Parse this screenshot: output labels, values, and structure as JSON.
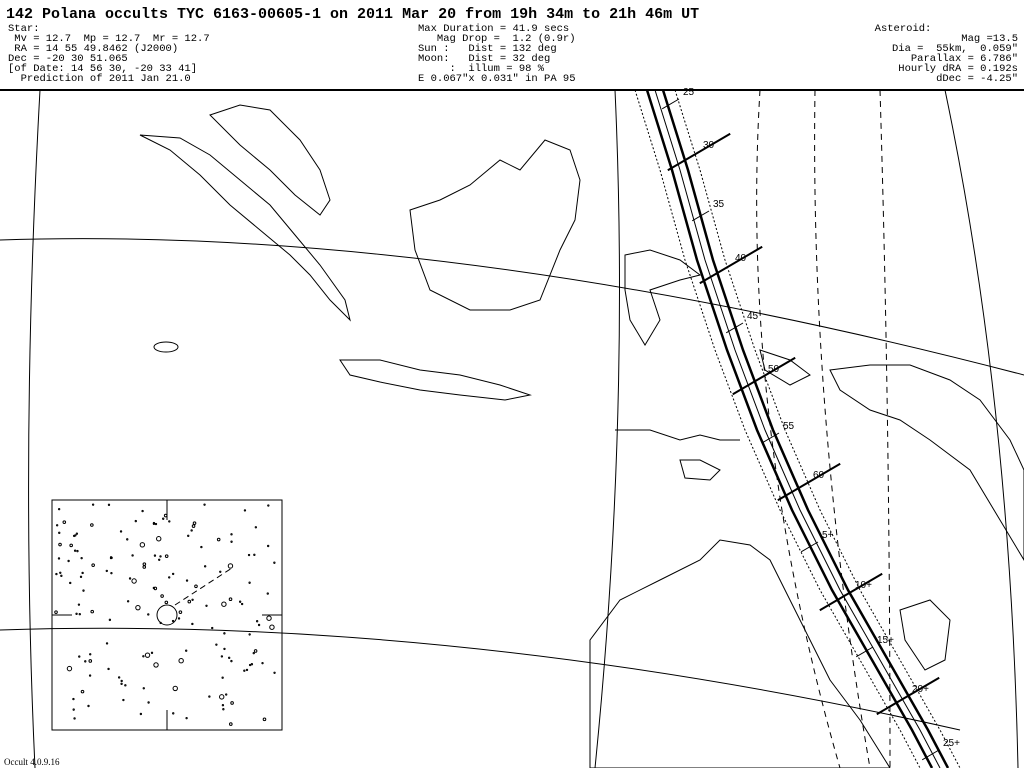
{
  "header": {
    "title": "142 Polana occults TYC 6163-00605-1 on 2011 Mar 20 from 19h 34m to 21h 46m UT",
    "left": [
      "Star:",
      " Mv = 12.7  Mp = 12.7  Mr = 12.7",
      " RA = 14 55 49.8462 (J2000)",
      "Dec = -20 30 51.065",
      "[of Date: 14 56 30, -20 33 41]",
      "  Prediction of 2011 Jan 21.0"
    ],
    "center": [
      "Max Duration = 41.9 secs",
      "   Mag Drop =  1.2 (0.9r)",
      "Sun :   Dist = 132 deg",
      "Moon:   Dist = 32 deg",
      "     :  illum = 98 %",
      "E 0.067\"x 0.031\" in PA 95"
    ],
    "right": [
      "Asteroid:",
      "Mag =13.5",
      "Dia =  55km,  0.059\"",
      "Parallax = 6.786\"",
      "Hourly dRA = 0.192s",
      "dDec = -4.25\""
    ]
  },
  "map": {
    "time_labels": [
      "25",
      "30",
      "35",
      "40",
      "45",
      "50",
      "55",
      "60",
      "5+",
      "10+",
      "15+",
      "20+",
      "25+"
    ]
  },
  "footer": {
    "version": "Occult 4.0.9.16"
  }
}
